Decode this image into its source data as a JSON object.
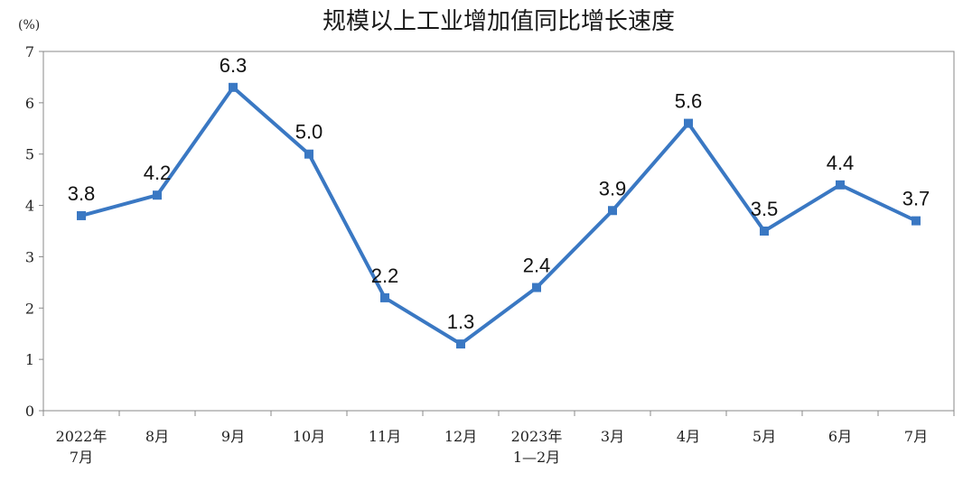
{
  "chart_data": {
    "type": "line",
    "title": "规模以上工业增加值同比增长速度",
    "ylabel": "(%)",
    "ylim": [
      0,
      7
    ],
    "yticks": [
      0,
      1,
      2,
      3,
      4,
      5,
      6,
      7
    ],
    "categories": [
      [
        "2022年",
        "7月"
      ],
      [
        "8月"
      ],
      [
        "9月"
      ],
      [
        "10月"
      ],
      [
        "11月"
      ],
      [
        "12月"
      ],
      [
        "2023年",
        "1—2月"
      ],
      [
        "3月"
      ],
      [
        "4月"
      ],
      [
        "5月"
      ],
      [
        "6月"
      ],
      [
        "7月"
      ]
    ],
    "values": [
      3.8,
      4.2,
      6.3,
      5.0,
      2.2,
      1.3,
      2.4,
      3.9,
      5.6,
      3.5,
      4.4,
      3.7
    ],
    "data_labels": [
      "3.8",
      "4.2",
      "6.3",
      "5.0",
      "2.2",
      "1.3",
      "2.4",
      "3.9",
      "5.6",
      "3.5",
      "4.4",
      "3.7"
    ],
    "line_color": "#3a78c3",
    "grid": false
  }
}
